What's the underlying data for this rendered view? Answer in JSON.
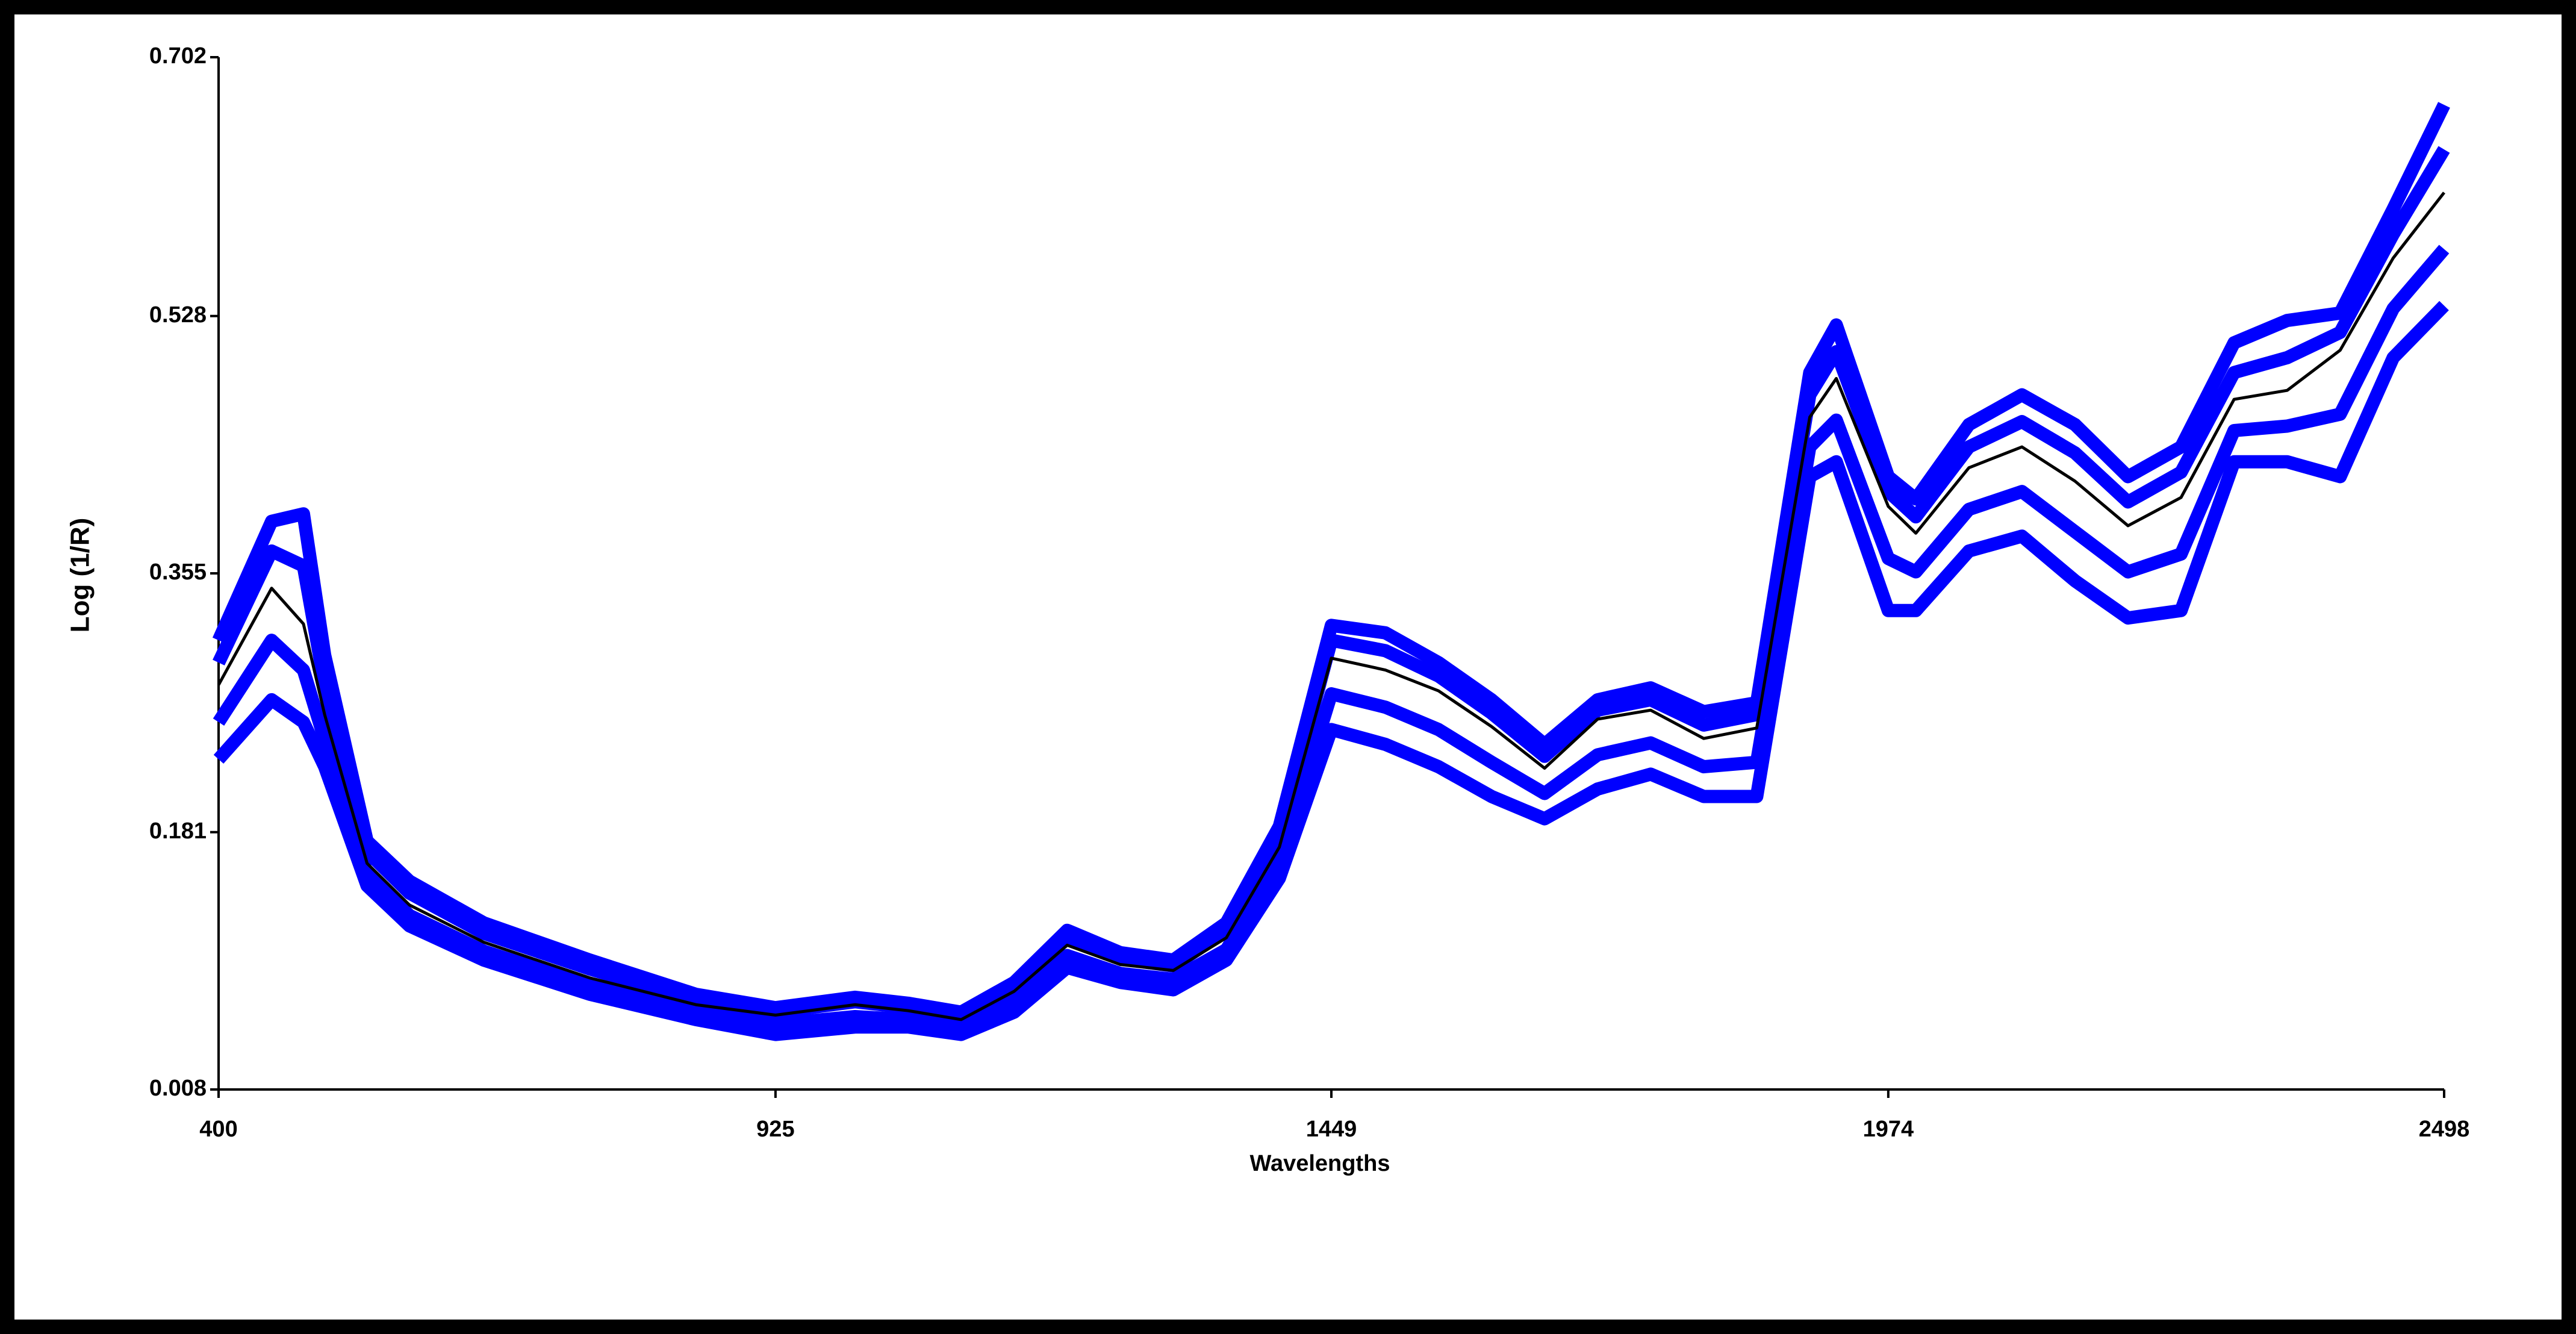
{
  "chart_data": {
    "type": "line",
    "y_label": "Log (1/R)",
    "x_label": "Wavelengths",
    "xlim": [
      400,
      2498
    ],
    "xticks": [
      400,
      925,
      1449,
      1974,
      2498
    ],
    "ylim": [
      0.008,
      0.702
    ],
    "yticks": [
      0.008,
      0.181,
      0.355,
      0.528,
      0.702
    ],
    "x": [
      400,
      450,
      480,
      500,
      540,
      580,
      650,
      750,
      850,
      925,
      1000,
      1050,
      1100,
      1150,
      1200,
      1250,
      1300,
      1350,
      1400,
      1449,
      1500,
      1550,
      1600,
      1650,
      1700,
      1750,
      1800,
      1850,
      1900,
      1925,
      1974,
      2000,
      2050,
      2100,
      2150,
      2200,
      2250,
      2300,
      2350,
      2400,
      2450,
      2498
    ],
    "series": [
      {
        "color": "#0000ff",
        "values": [
          0.31,
          0.39,
          0.395,
          0.3,
          0.175,
          0.148,
          0.12,
          0.095,
          0.072,
          0.063,
          0.07,
          0.066,
          0.06,
          0.08,
          0.115,
          0.1,
          0.095,
          0.12,
          0.185,
          0.32,
          0.315,
          0.295,
          0.27,
          0.24,
          0.27,
          0.278,
          0.262,
          0.268,
          0.49,
          0.522,
          0.42,
          0.405,
          0.455,
          0.475,
          0.455,
          0.42,
          0.44,
          0.51,
          0.525,
          0.53,
          0.6,
          0.67
        ]
      },
      {
        "color": "#0000ff",
        "values": [
          0.295,
          0.37,
          0.36,
          0.28,
          0.168,
          0.14,
          0.113,
          0.089,
          0.068,
          0.06,
          0.067,
          0.063,
          0.057,
          0.077,
          0.11,
          0.096,
          0.091,
          0.115,
          0.178,
          0.31,
          0.303,
          0.286,
          0.261,
          0.232,
          0.263,
          0.27,
          0.253,
          0.26,
          0.475,
          0.504,
          0.41,
          0.393,
          0.44,
          0.457,
          0.436,
          0.403,
          0.423,
          0.49,
          0.5,
          0.517,
          0.583,
          0.64
        ]
      },
      {
        "color": "#0000ff",
        "values": [
          0.255,
          0.31,
          0.29,
          0.243,
          0.153,
          0.125,
          0.101,
          0.078,
          0.06,
          0.052,
          0.057,
          0.055,
          0.05,
          0.067,
          0.098,
          0.086,
          0.082,
          0.102,
          0.16,
          0.274,
          0.265,
          0.25,
          0.228,
          0.207,
          0.233,
          0.241,
          0.225,
          0.228,
          0.44,
          0.458,
          0.365,
          0.356,
          0.398,
          0.41,
          0.383,
          0.356,
          0.368,
          0.451,
          0.454,
          0.462,
          0.533,
          0.573
        ]
      },
      {
        "color": "#0000ff",
        "values": [
          0.23,
          0.27,
          0.255,
          0.225,
          0.145,
          0.118,
          0.095,
          0.072,
          0.055,
          0.045,
          0.05,
          0.05,
          0.045,
          0.06,
          0.09,
          0.08,
          0.075,
          0.095,
          0.15,
          0.25,
          0.24,
          0.225,
          0.205,
          0.19,
          0.21,
          0.22,
          0.205,
          0.205,
          0.42,
          0.43,
          0.33,
          0.33,
          0.37,
          0.38,
          0.35,
          0.325,
          0.33,
          0.43,
          0.43,
          0.42,
          0.5,
          0.535
        ]
      },
      {
        "color": "#000000",
        "values": [
          0.28,
          0.345,
          0.321,
          0.26,
          0.16,
          0.132,
          0.107,
          0.083,
          0.065,
          0.058,
          0.065,
          0.061,
          0.055,
          0.074,
          0.105,
          0.092,
          0.088,
          0.11,
          0.171,
          0.298,
          0.29,
          0.276,
          0.252,
          0.224,
          0.257,
          0.263,
          0.244,
          0.251,
          0.46,
          0.486,
          0.4,
          0.382,
          0.426,
          0.44,
          0.417,
          0.387,
          0.406,
          0.472,
          0.478,
          0.505,
          0.567,
          0.611
        ]
      }
    ]
  }
}
